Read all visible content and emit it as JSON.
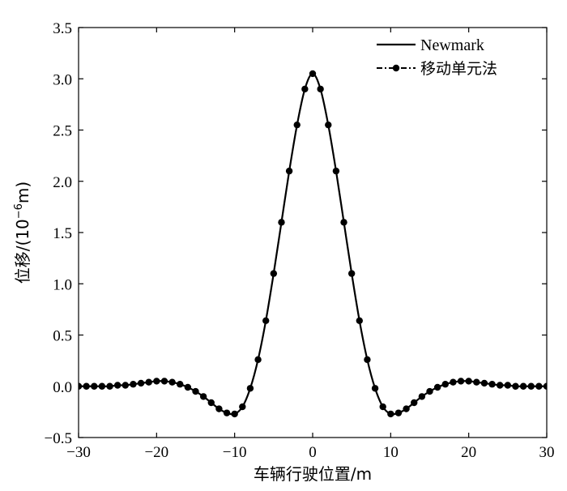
{
  "chart_data": {
    "type": "line",
    "xlabel": "车辆行驶位置/m",
    "ylabel": {
      "prefix": "位移/(10",
      "exponent": "−6",
      "suffix": "m)"
    },
    "xlim": [
      -30,
      30
    ],
    "ylim": [
      -0.5,
      3.5
    ],
    "xticks": [
      -30,
      -20,
      -10,
      0,
      10,
      20,
      30
    ],
    "xtick_labels": [
      "−30",
      "−20",
      "−10",
      "0",
      "10",
      "20",
      "30"
    ],
    "yticks": [
      -0.5,
      0.0,
      0.5,
      1.0,
      1.5,
      2.0,
      2.5,
      3.0,
      3.5
    ],
    "ytick_labels": [
      "−0.5",
      "0.0",
      "0.5",
      "1.0",
      "1.5",
      "2.0",
      "2.5",
      "3.0",
      "3.5"
    ],
    "grid": false,
    "legend_position": "top-right",
    "series": [
      {
        "name": "Newmark",
        "style": "solid",
        "color": "#000000",
        "x": [
          -30,
          -29,
          -28,
          -27,
          -26,
          -25,
          -24,
          -23,
          -22,
          -21,
          -20,
          -19,
          -18,
          -17,
          -16,
          -15,
          -14,
          -13,
          -12,
          -11,
          -10,
          -9,
          -8,
          -7,
          -6,
          -5,
          -4,
          -3,
          -2,
          -1,
          0,
          1,
          2,
          3,
          4,
          5,
          6,
          7,
          8,
          9,
          10,
          11,
          12,
          13,
          14,
          15,
          16,
          17,
          18,
          19,
          20,
          21,
          22,
          23,
          24,
          25,
          26,
          27,
          28,
          29,
          30
        ],
        "y": [
          0.0,
          0.0,
          0.0,
          0.0,
          0.0,
          0.01,
          0.01,
          0.02,
          0.03,
          0.04,
          0.05,
          0.05,
          0.04,
          0.02,
          -0.01,
          -0.05,
          -0.1,
          -0.16,
          -0.22,
          -0.26,
          -0.27,
          -0.2,
          -0.02,
          0.26,
          0.64,
          1.1,
          1.6,
          2.1,
          2.55,
          2.9,
          3.05,
          2.9,
          2.55,
          2.1,
          1.6,
          1.1,
          0.64,
          0.26,
          -0.02,
          -0.2,
          -0.27,
          -0.26,
          -0.22,
          -0.16,
          -0.1,
          -0.05,
          -0.01,
          0.02,
          0.04,
          0.05,
          0.05,
          0.04,
          0.03,
          0.02,
          0.01,
          0.01,
          0.0,
          0.0,
          0.0,
          0.0,
          0.0
        ]
      },
      {
        "name": "移动单元法",
        "style": "dash-dot-markers",
        "color": "#000000",
        "x": [
          -30,
          -29,
          -28,
          -27,
          -26,
          -25,
          -24,
          -23,
          -22,
          -21,
          -20,
          -19,
          -18,
          -17,
          -16,
          -15,
          -14,
          -13,
          -12,
          -11,
          -10,
          -9,
          -8,
          -7,
          -6,
          -5,
          -4,
          -3,
          -2,
          -1,
          0,
          1,
          2,
          3,
          4,
          5,
          6,
          7,
          8,
          9,
          10,
          11,
          12,
          13,
          14,
          15,
          16,
          17,
          18,
          19,
          20,
          21,
          22,
          23,
          24,
          25,
          26,
          27,
          28,
          29,
          30
        ],
        "y": [
          0.0,
          0.0,
          0.0,
          0.0,
          0.0,
          0.01,
          0.01,
          0.02,
          0.03,
          0.04,
          0.05,
          0.05,
          0.04,
          0.02,
          -0.01,
          -0.05,
          -0.1,
          -0.16,
          -0.22,
          -0.26,
          -0.27,
          -0.2,
          -0.02,
          0.26,
          0.64,
          1.1,
          1.6,
          2.1,
          2.55,
          2.9,
          3.05,
          2.9,
          2.55,
          2.1,
          1.6,
          1.1,
          0.64,
          0.26,
          -0.02,
          -0.2,
          -0.27,
          -0.26,
          -0.22,
          -0.16,
          -0.1,
          -0.05,
          -0.01,
          0.02,
          0.04,
          0.05,
          0.05,
          0.04,
          0.03,
          0.02,
          0.01,
          0.01,
          0.0,
          0.0,
          0.0,
          0.0,
          0.0
        ]
      }
    ]
  }
}
